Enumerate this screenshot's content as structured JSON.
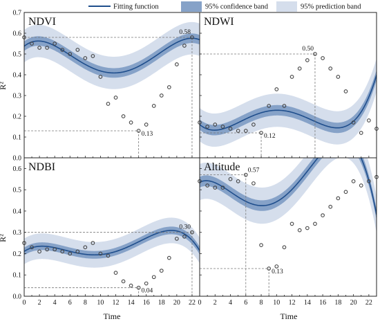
{
  "legend": {
    "fit_label": "Fitting function",
    "conf_label": "95% confidence band",
    "pred_label": "95% prediction band"
  },
  "colors": {
    "fit_line": "#1f4e8c",
    "confidence_band": "#86a2c8",
    "prediction_band": "#d5deec",
    "points_edge": "#444444",
    "reference_line": "#777777"
  },
  "shared_axes": {
    "x_label": "Time",
    "x_ticks": [
      0,
      2,
      4,
      6,
      8,
      10,
      12,
      14,
      16,
      18,
      20,
      22
    ],
    "left_y_label": "R²",
    "top_y_ticks": [
      "0.7",
      "0.6",
      "0.5",
      "0.4",
      "0.3",
      "0.2",
      "0.1",
      "0.0"
    ],
    "bottom_y_ticks": [
      "0.6",
      "0.5",
      "0.4",
      "0.3",
      "0.2",
      "0.1",
      "0.0"
    ]
  },
  "chart_data": [
    {
      "type": "scatter",
      "title": "NDVI",
      "xlabel": "",
      "ylabel": "R²",
      "xlim": [
        0,
        23
      ],
      "ylim": [
        0,
        0.7
      ],
      "x": [
        0,
        1,
        2,
        3,
        4,
        5,
        6,
        7,
        8,
        9,
        10,
        11,
        12,
        13,
        14,
        15,
        16,
        17,
        18,
        19,
        20,
        21,
        22
      ],
      "y": [
        0.58,
        0.55,
        0.53,
        0.53,
        0.55,
        0.52,
        0.5,
        0.52,
        0.48,
        0.49,
        0.39,
        0.26,
        0.29,
        0.2,
        0.17,
        0.13,
        0.16,
        0.25,
        0.3,
        0.34,
        0.45,
        0.54,
        0.58
      ],
      "fit_poly": [
        0.5373,
        0.0297,
        -0.01,
        0.00074,
        -1.56e-05
      ],
      "conf_halfwidth": 0.023,
      "pred_halfwidth": 0.078,
      "annotations": [
        {
          "x": 22,
          "y": 0.58,
          "label": "0.58"
        },
        {
          "x": 15,
          "y": 0.13,
          "label": "0.13"
        }
      ]
    },
    {
      "type": "scatter",
      "title": "NDWI",
      "xlabel": "",
      "ylabel": "",
      "xlim": [
        0,
        23
      ],
      "ylim": [
        0,
        0.7
      ],
      "x": [
        0,
        1,
        2,
        3,
        4,
        5,
        6,
        7,
        8,
        9,
        10,
        11,
        12,
        13,
        14,
        15,
        16,
        17,
        18,
        19,
        20,
        21,
        22,
        23
      ],
      "y": [
        0.17,
        0.15,
        0.16,
        0.15,
        0.14,
        0.13,
        0.13,
        0.16,
        0.12,
        0.25,
        0.33,
        0.25,
        0.39,
        0.43,
        0.47,
        0.5,
        0.48,
        0.43,
        0.39,
        0.32,
        0.17,
        0.12,
        0.18,
        0.14
      ],
      "fit_poly": [
        0.16,
        -0.0308,
        0.0104,
        -0.000885,
        2.22e-05
      ],
      "conf_halfwidth": 0.025,
      "pred_halfwidth": 0.08,
      "annotations": [
        {
          "x": 15,
          "y": 0.5,
          "label": "0.50"
        },
        {
          "x": 8,
          "y": 0.12,
          "label": "0.12"
        }
      ]
    },
    {
      "type": "scatter",
      "title": "NDBI",
      "xlabel": "Time",
      "ylabel": "R²",
      "xlim": [
        0,
        23
      ],
      "ylim": [
        0,
        0.65
      ],
      "x": [
        0,
        1,
        2,
        3,
        4,
        5,
        6,
        7,
        8,
        9,
        10,
        11,
        12,
        13,
        14,
        15,
        16,
        17,
        18,
        19,
        20,
        21,
        22
      ],
      "y": [
        0.25,
        0.23,
        0.21,
        0.22,
        0.22,
        0.21,
        0.2,
        0.21,
        0.23,
        0.25,
        0.2,
        0.19,
        0.11,
        0.07,
        0.05,
        0.04,
        0.06,
        0.09,
        0.12,
        0.18,
        0.27,
        0.28,
        0.3
      ],
      "fit_poly": [
        0.2105,
        0.0236,
        -0.0069,
        0.00058,
        -1.41e-05
      ],
      "conf_halfwidth": 0.018,
      "pred_halfwidth": 0.06,
      "annotations": [
        {
          "x": 22,
          "y": 0.3,
          "label": "0.30"
        },
        {
          "x": 15,
          "y": 0.04,
          "label": "0.04"
        }
      ]
    },
    {
      "type": "scatter",
      "title": "Altitude",
      "xlabel": "Time",
      "ylabel": "",
      "xlim": [
        0,
        23
      ],
      "ylim": [
        0,
        0.65
      ],
      "x": [
        0,
        1,
        2,
        3,
        4,
        5,
        6,
        7,
        8,
        9,
        10,
        11,
        12,
        13,
        14,
        15,
        16,
        17,
        18,
        19,
        20,
        21,
        22,
        23
      ],
      "y": [
        0.54,
        0.52,
        0.51,
        0.51,
        0.55,
        0.54,
        0.57,
        0.53,
        0.24,
        0.13,
        0.14,
        0.23,
        0.34,
        0.31,
        0.32,
        0.34,
        0.38,
        0.42,
        0.46,
        0.49,
        0.54,
        0.52,
        0.54,
        0.56
      ],
      "fit_poly": [
        0.5357,
        0.0167,
        -0.0113,
        0.001197,
        -3.26e-05
      ],
      "conf_halfwidth": 0.025,
      "pred_halfwidth": 0.085,
      "annotations": [
        {
          "x": 6,
          "y": 0.57,
          "label": "0.57"
        },
        {
          "x": 9,
          "y": 0.13,
          "label": "0.13"
        }
      ]
    }
  ]
}
